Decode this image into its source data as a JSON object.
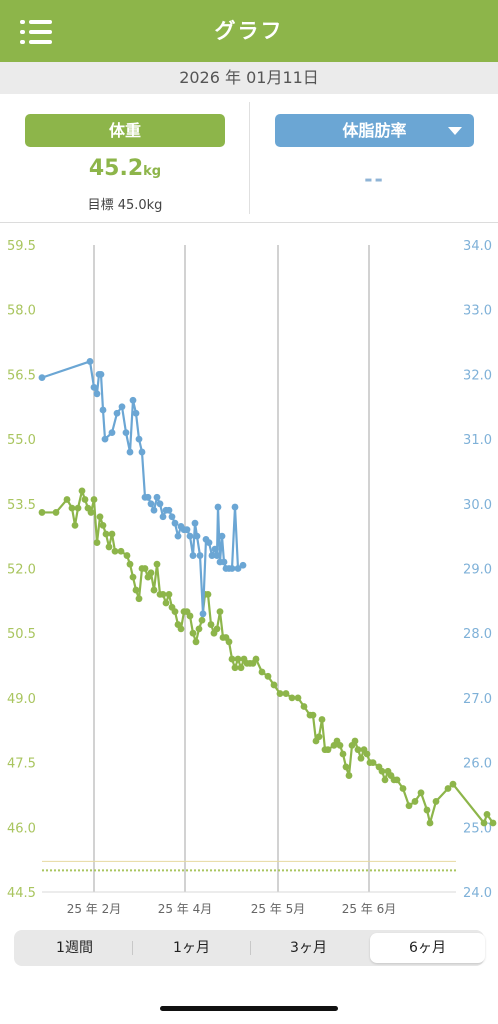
{
  "header": {
    "title": "グラフ",
    "menu_icon": "list-menu-icon"
  },
  "date": "2026 年 01月11日",
  "summary": {
    "weight_label": "体重",
    "weight_value": "45.2",
    "weight_unit": "kg",
    "goal_text": "目標 45.0kg",
    "fat_label": "体脂肪率",
    "fat_value": "--"
  },
  "colors": {
    "green": "#8db54a",
    "blue": "#6ba6d4"
  },
  "chart_data": {
    "type": "line",
    "y_left_ticks": [
      "59.5",
      "58.0",
      "56.5",
      "55.0",
      "53.5",
      "52.0",
      "50.5",
      "49.0",
      "47.5",
      "46.0",
      "44.5"
    ],
    "y_right_ticks": [
      "34.0",
      "33.0",
      "32.0",
      "31.0",
      "30.0",
      "29.0",
      "28.0",
      "27.0",
      "26.0",
      "25.0",
      "24.0"
    ],
    "x_labels": [
      "25 年 2月",
      "25 年 4月",
      "25 年 5月",
      "25 年 6月"
    ],
    "y_left_range": [
      44.5,
      59.5
    ],
    "y_right_range": [
      24.0,
      34.0
    ],
    "goal_weight": 45.0,
    "series": [
      {
        "axis": "left",
        "color": "#8db54a",
        "points": [
          [
            0,
            53.3
          ],
          [
            14,
            53.3
          ],
          [
            25,
            53.6
          ],
          [
            30,
            53.4
          ],
          [
            33,
            53.0
          ],
          [
            36,
            53.4
          ],
          [
            40,
            53.8
          ],
          [
            43,
            53.6
          ],
          [
            46,
            53.4
          ],
          [
            49,
            53.3
          ],
          [
            52,
            53.6
          ],
          [
            55,
            52.6
          ],
          [
            58,
            53.2
          ],
          [
            61,
            53.0
          ],
          [
            64,
            52.8
          ],
          [
            67,
            52.5
          ],
          [
            70,
            52.8
          ],
          [
            73,
            52.4
          ],
          [
            79,
            52.4
          ],
          [
            85,
            52.3
          ],
          [
            88,
            52.1
          ],
          [
            91,
            51.8
          ],
          [
            94,
            51.5
          ],
          [
            97,
            51.3
          ],
          [
            100,
            52.0
          ],
          [
            103,
            52.0
          ],
          [
            106,
            51.8
          ],
          [
            109,
            51.9
          ],
          [
            112,
            51.5
          ],
          [
            115,
            52.1
          ],
          [
            118,
            51.4
          ],
          [
            121,
            51.4
          ],
          [
            124,
            51.2
          ],
          [
            127,
            51.4
          ],
          [
            130,
            51.1
          ],
          [
            133,
            51.0
          ],
          [
            136,
            50.7
          ],
          [
            139,
            50.6
          ],
          [
            142,
            51.0
          ],
          [
            145,
            51.0
          ],
          [
            148,
            50.9
          ],
          [
            151,
            50.5
          ],
          [
            154,
            50.3
          ],
          [
            157,
            50.6
          ],
          [
            160,
            50.8
          ],
          [
            163,
            51.4
          ],
          [
            166,
            51.4
          ],
          [
            169,
            50.7
          ],
          [
            172,
            50.5
          ],
          [
            175,
            50.6
          ],
          [
            178,
            51.0
          ],
          [
            181,
            50.4
          ],
          [
            184,
            50.4
          ],
          [
            187,
            50.3
          ],
          [
            190,
            49.9
          ],
          [
            193,
            49.7
          ],
          [
            196,
            49.9
          ],
          [
            199,
            49.7
          ],
          [
            202,
            49.9
          ],
          [
            205,
            49.8
          ],
          [
            208,
            49.8
          ],
          [
            211,
            49.8
          ],
          [
            214,
            49.9
          ],
          [
            220,
            49.6
          ],
          [
            226,
            49.5
          ],
          [
            232,
            49.3
          ],
          [
            238,
            49.1
          ],
          [
            244,
            49.1
          ],
          [
            250,
            49.0
          ],
          [
            256,
            49.0
          ],
          [
            262,
            48.8
          ],
          [
            268,
            48.6
          ],
          [
            271,
            48.6
          ],
          [
            274,
            48.0
          ],
          [
            277,
            48.1
          ],
          [
            280,
            48.5
          ],
          [
            283,
            47.8
          ],
          [
            286,
            47.8
          ],
          [
            292,
            47.9
          ],
          [
            295,
            48.0
          ],
          [
            298,
            47.9
          ],
          [
            301,
            47.7
          ],
          [
            304,
            47.4
          ],
          [
            307,
            47.2
          ],
          [
            310,
            47.9
          ],
          [
            313,
            48.0
          ],
          [
            316,
            47.8
          ],
          [
            319,
            47.6
          ],
          [
            322,
            47.8
          ],
          [
            325,
            47.7
          ],
          [
            328,
            47.5
          ],
          [
            331,
            47.5
          ],
          [
            337,
            47.4
          ],
          [
            340,
            47.3
          ],
          [
            343,
            47.1
          ],
          [
            346,
            47.3
          ],
          [
            349,
            47.2
          ],
          [
            352,
            47.1
          ],
          [
            355,
            47.1
          ],
          [
            361,
            46.9
          ],
          [
            367,
            46.5
          ],
          [
            373,
            46.6
          ],
          [
            379,
            46.8
          ],
          [
            385,
            46.4
          ],
          [
            388,
            46.1
          ],
          [
            394,
            46.6
          ],
          [
            406,
            46.9
          ],
          [
            411,
            47.0
          ],
          [
            442,
            46.1
          ],
          [
            445,
            46.3
          ],
          [
            451,
            46.1
          ]
        ]
      },
      {
        "axis": "right",
        "color": "#6ba6d4",
        "points": [
          [
            0,
            31.95
          ],
          [
            48,
            32.2
          ],
          [
            52,
            31.8
          ],
          [
            55,
            31.7
          ],
          [
            57,
            32.0
          ],
          [
            59,
            32.0
          ],
          [
            61,
            31.45
          ],
          [
            63,
            31.0
          ],
          [
            70,
            31.1
          ],
          [
            75,
            31.4
          ],
          [
            80,
            31.5
          ],
          [
            84,
            31.1
          ],
          [
            88,
            30.8
          ],
          [
            91,
            31.6
          ],
          [
            94,
            31.4
          ],
          [
            97,
            31.0
          ],
          [
            100,
            30.8
          ],
          [
            103,
            30.1
          ],
          [
            106,
            30.1
          ],
          [
            109,
            30.0
          ],
          [
            112,
            29.9
          ],
          [
            115,
            30.1
          ],
          [
            118,
            30.0
          ],
          [
            121,
            29.8
          ],
          [
            124,
            29.9
          ],
          [
            127,
            29.9
          ],
          [
            130,
            29.8
          ],
          [
            133,
            29.7
          ],
          [
            136,
            29.5
          ],
          [
            139,
            29.65
          ],
          [
            142,
            29.6
          ],
          [
            145,
            29.6
          ],
          [
            148,
            29.5
          ],
          [
            151,
            29.2
          ],
          [
            153,
            29.7
          ],
          [
            155,
            29.5
          ],
          [
            158,
            29.2
          ],
          [
            161,
            28.3
          ],
          [
            164,
            29.45
          ],
          [
            167,
            29.4
          ],
          [
            170,
            29.2
          ],
          [
            173,
            29.3
          ],
          [
            175,
            29.2
          ],
          [
            176,
            29.95
          ],
          [
            178,
            29.1
          ],
          [
            180,
            29.5
          ],
          [
            182,
            29.1
          ],
          [
            184,
            29.0
          ],
          [
            187,
            29.0
          ],
          [
            190,
            29.0
          ],
          [
            193,
            29.95
          ],
          [
            196,
            29.0
          ],
          [
            201,
            29.05
          ]
        ]
      }
    ]
  },
  "tabs": [
    {
      "label": "1週間",
      "active": false
    },
    {
      "label": "1ヶ月",
      "active": false
    },
    {
      "label": "3ヶ月",
      "active": false
    },
    {
      "label": "6ヶ月",
      "active": true
    }
  ]
}
